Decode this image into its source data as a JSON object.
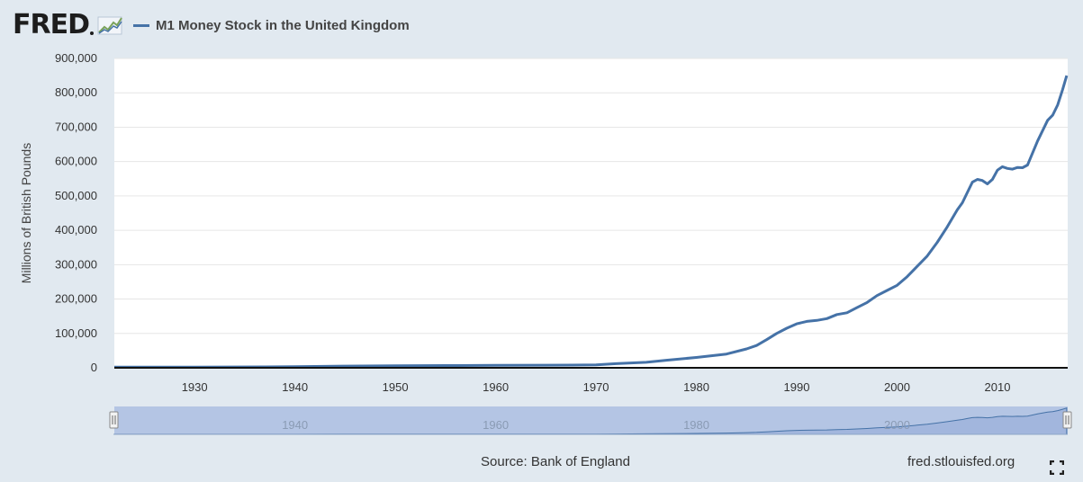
{
  "brand": {
    "logo_text": "FRED"
  },
  "legend": {
    "label": "M1 Money Stock in the United Kingdom",
    "color": "#4572a7"
  },
  "footer": {
    "source": "Source: Bank of England",
    "url": "fred.stlouisfed.org"
  },
  "icons": {
    "logo": "line-chart-icon",
    "fullscreen": "fullscreen-icon"
  },
  "colors": {
    "background": "#e1e9f0",
    "plot_bg": "#ffffff",
    "line": "#4572a7",
    "navigator_fill": "#b4c5e4"
  },
  "chart_data": {
    "type": "line",
    "title": "M1 Money Stock in the United Kingdom",
    "xlabel": "",
    "ylabel": "Millions of British Pounds",
    "xlim": [
      1922,
      2017
    ],
    "ylim": [
      0,
      900000
    ],
    "y_ticks": [
      0,
      100000,
      200000,
      300000,
      400000,
      500000,
      600000,
      700000,
      800000,
      900000
    ],
    "y_tick_labels": [
      "0",
      "100,000",
      "200,000",
      "300,000",
      "400,000",
      "500,000",
      "600,000",
      "700,000",
      "800,000",
      "900,000"
    ],
    "x_ticks": [
      1930,
      1940,
      1950,
      1960,
      1970,
      1980,
      1990,
      2000,
      2010
    ],
    "navigator_ticks": [
      1940,
      1960,
      1980,
      2000
    ],
    "grid": true,
    "series": [
      {
        "name": "M1 Money Stock in the United Kingdom",
        "x": [
          1922,
          1930,
          1937,
          1940,
          1945,
          1950,
          1955,
          1960,
          1965,
          1970,
          1972,
          1975,
          1977,
          1980,
          1983,
          1985,
          1986,
          1987,
          1988,
          1989,
          1990,
          1991,
          1992,
          1993,
          1994,
          1995,
          1996,
          1997,
          1998,
          1999,
          2000,
          2001,
          2002,
          2003,
          2004,
          2005,
          2006,
          2006.5,
          2007,
          2007.5,
          2008,
          2008.5,
          2009,
          2009.5,
          2010,
          2010.5,
          2011,
          2011.5,
          2012,
          2012.5,
          2013,
          2014,
          2015,
          2015.5,
          2016,
          2016.5,
          2016.9
        ],
        "y": [
          1800,
          2000,
          2500,
          3500,
          5000,
          6000,
          6500,
          7000,
          7500,
          8500,
          12000,
          16000,
          22000,
          30000,
          40000,
          55000,
          65000,
          82000,
          100000,
          115000,
          128000,
          135000,
          138000,
          143000,
          155000,
          160000,
          175000,
          190000,
          210000,
          225000,
          240000,
          265000,
          295000,
          325000,
          365000,
          410000,
          460000,
          480000,
          510000,
          540000,
          548000,
          545000,
          535000,
          548000,
          575000,
          585000,
          580000,
          578000,
          583000,
          582000,
          590000,
          660000,
          720000,
          735000,
          765000,
          810000,
          850000
        ]
      }
    ]
  }
}
